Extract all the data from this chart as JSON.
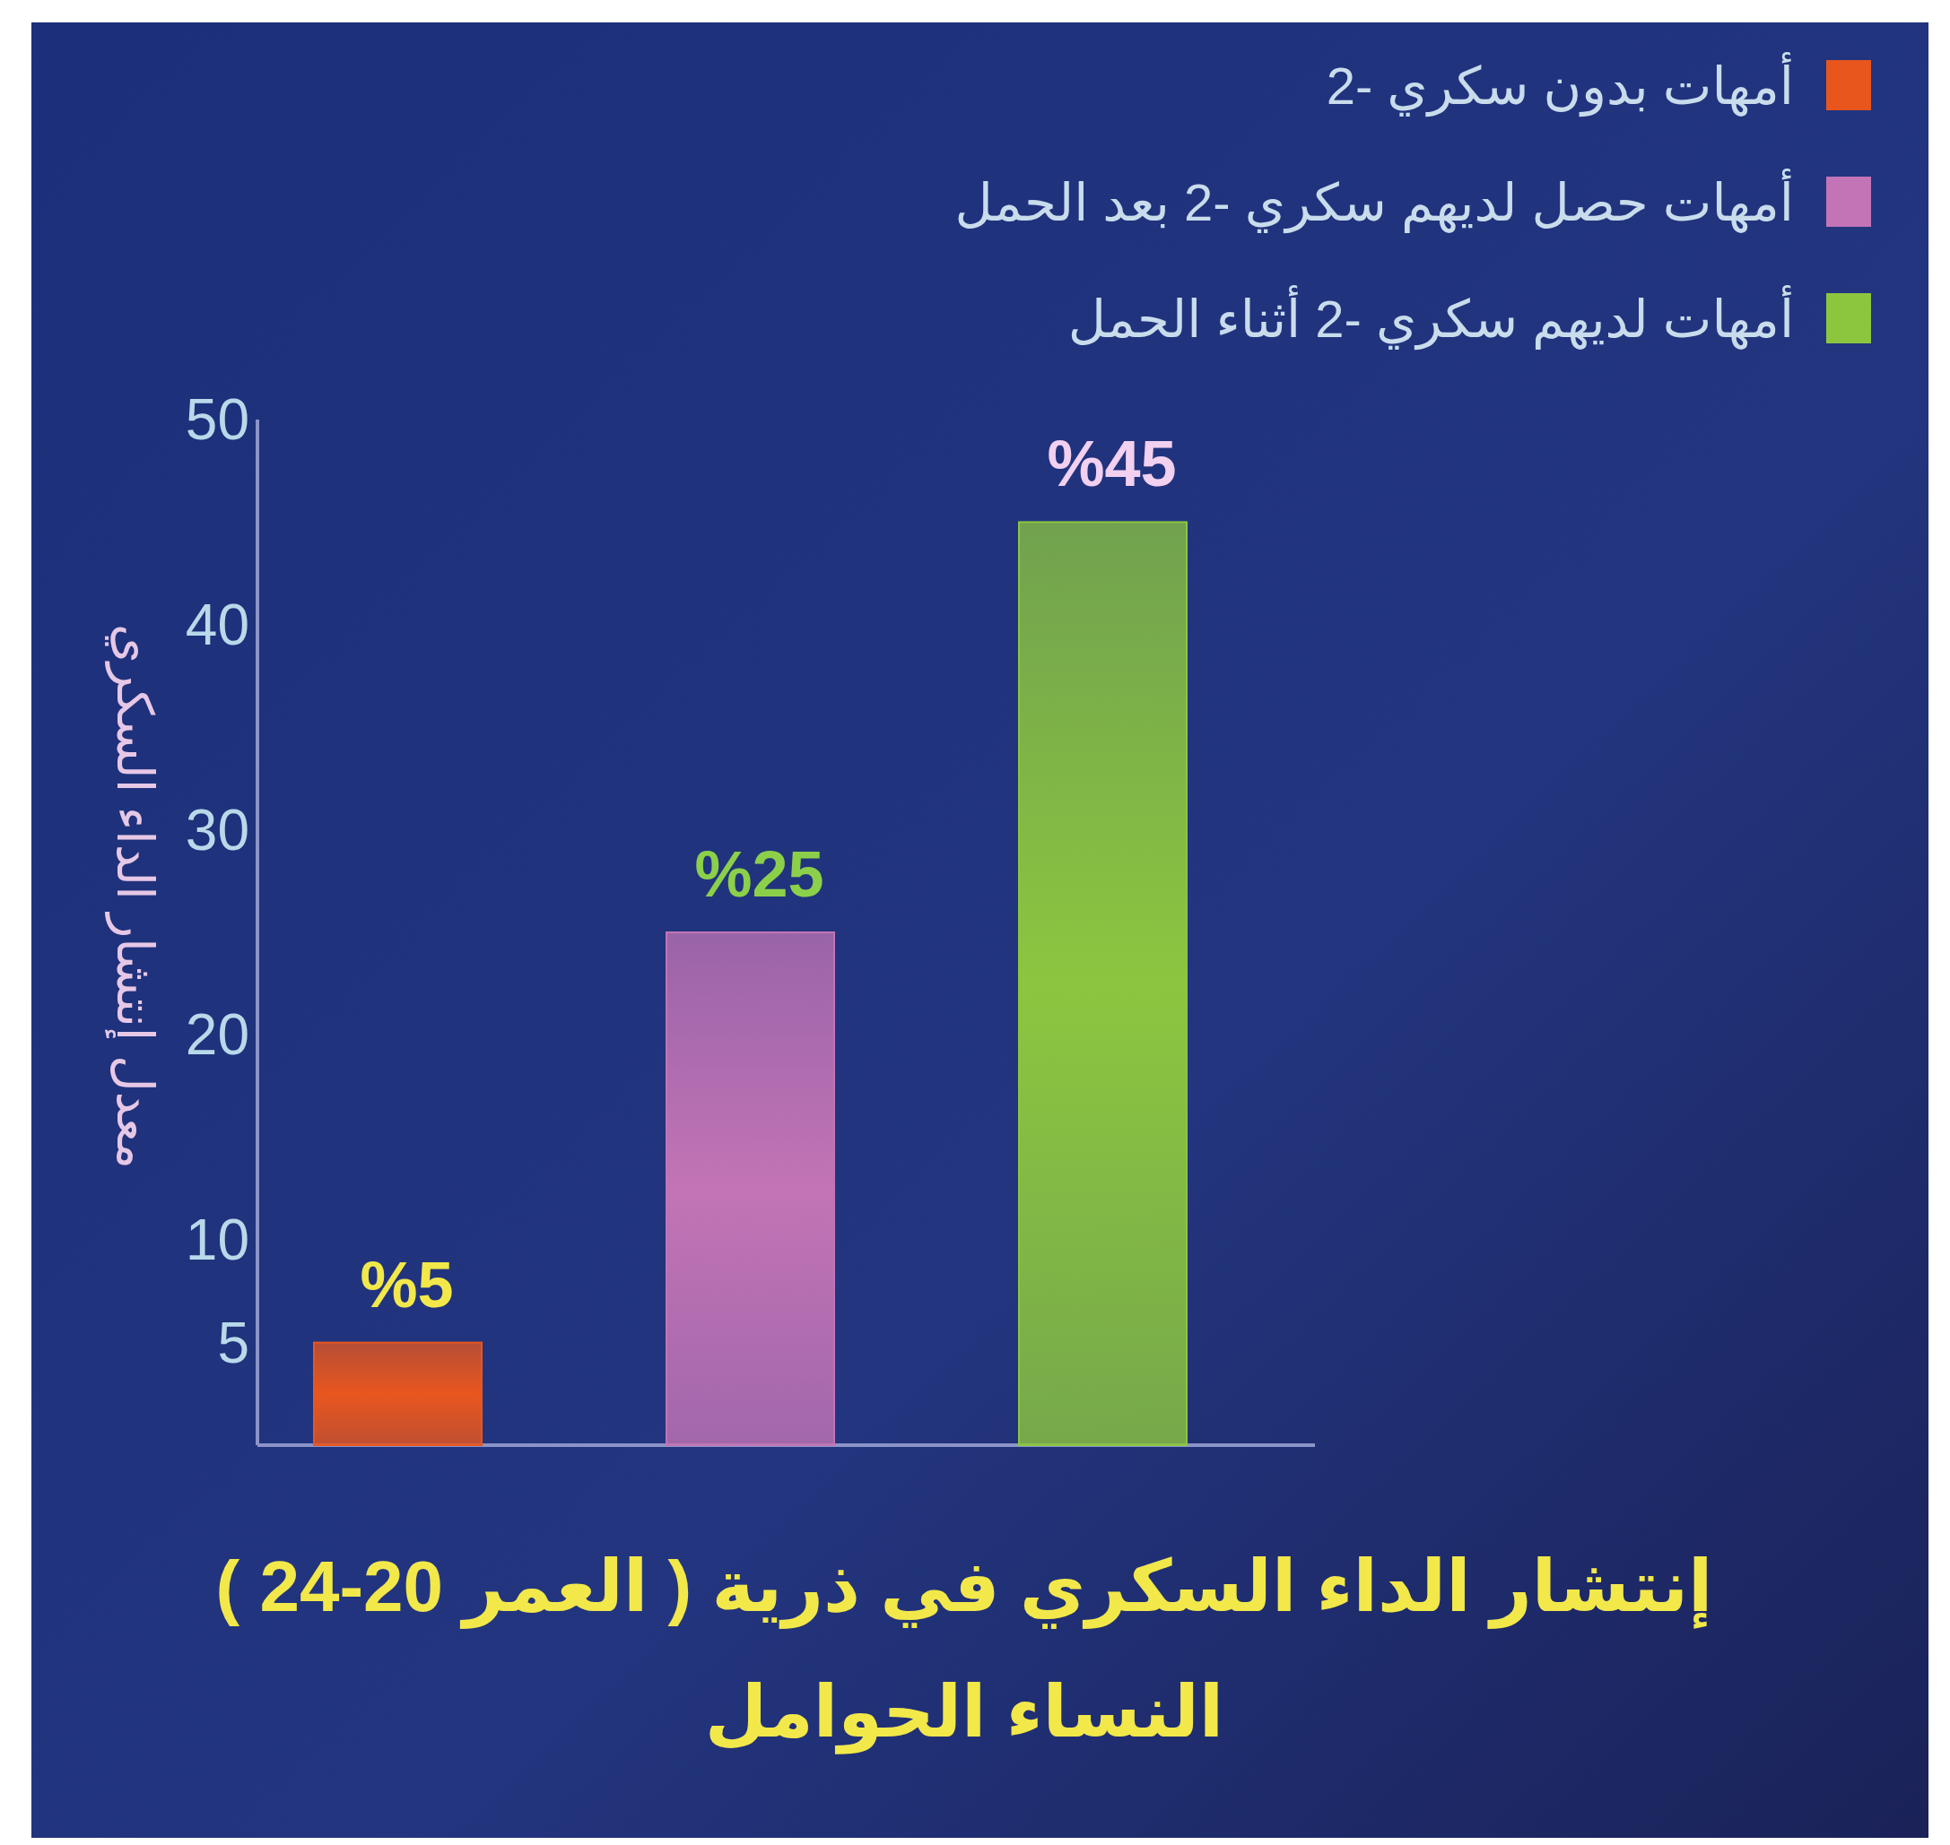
{
  "chart_data": {
    "type": "bar",
    "title": "إنتشار الداء السكري في ذرية ( العمر 20-24 )\nالنساء الحوامل",
    "ylabel": "معدل إنتشار الداء السكري",
    "categories": [
      null,
      null,
      null
    ],
    "series": [
      {
        "name": "أمهات بدون سكري -2",
        "color": "#e8561e",
        "values": [
          5,
          null,
          null
        ],
        "value_labels": [
          "%5",
          null,
          null
        ]
      },
      {
        "name": "أمهات حصل لديهم سكري -2 بعد الحمل",
        "color": "#c274b6",
        "values": [
          null,
          25,
          null
        ],
        "value_labels": [
          null,
          "%25",
          null
        ]
      },
      {
        "name": "أمهات لديهم سكري -2 أثناء الحمل",
        "color": "#8cc63f",
        "values": [
          null,
          null,
          45
        ],
        "value_labels": [
          null,
          null,
          "%45"
        ]
      }
    ],
    "ylim": [
      0,
      50
    ],
    "yticks": [
      5,
      10,
      20,
      30,
      40,
      50
    ],
    "grid": false,
    "legend": "top right"
  }
}
